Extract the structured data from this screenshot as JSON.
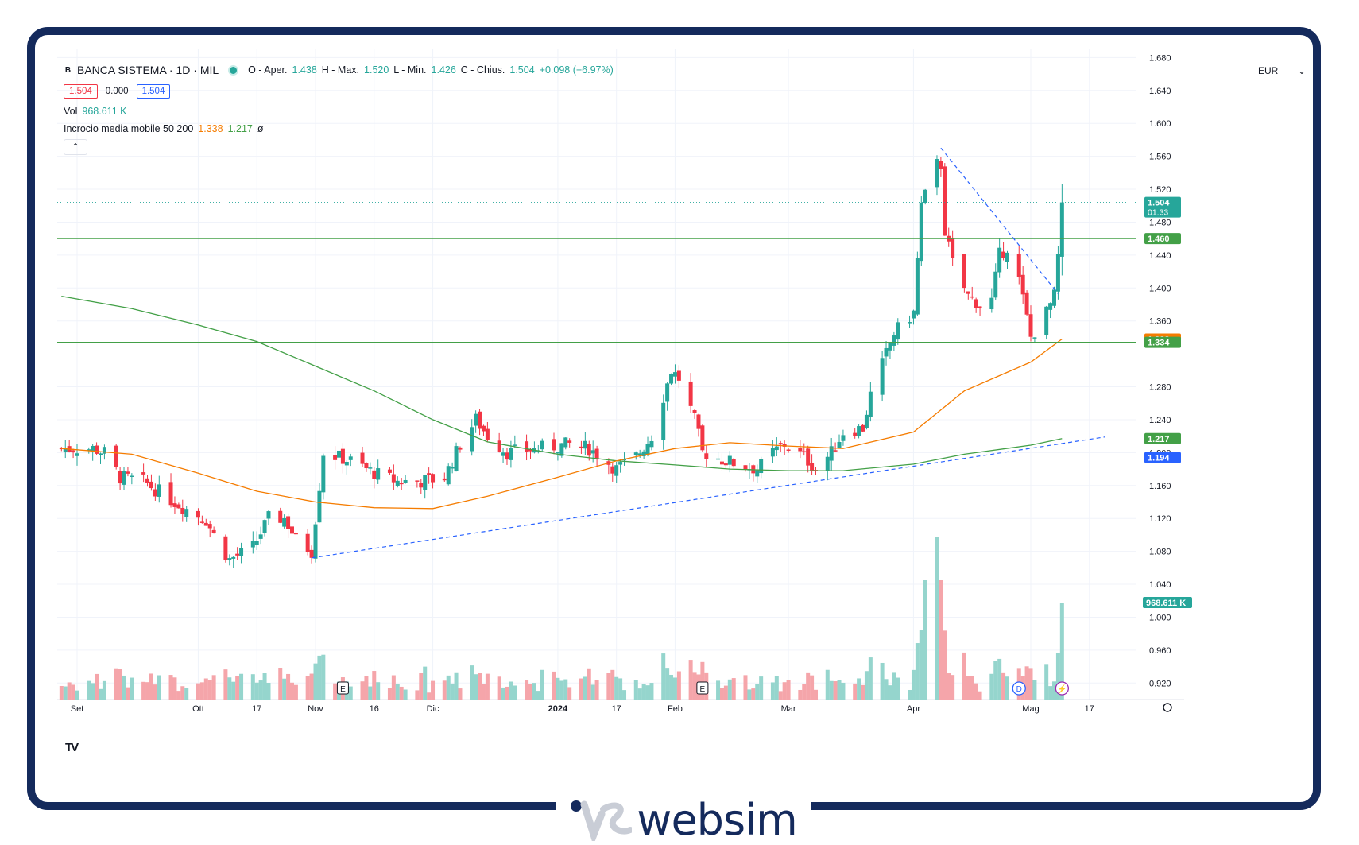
{
  "header": {
    "symbol": "BANCA SISTEMA · 1D · MIL",
    "logo_letter": "B",
    "ohlc": {
      "open_label": "O - Aper.",
      "open": "1.438",
      "high_label": "H - Max.",
      "high": "1.520",
      "low_label": "L - Min.",
      "low": "1.426",
      "close_label": "C - Chius.",
      "close": "1.504",
      "change": "+0.098 (+6.97%)"
    },
    "sell_price": "1.504",
    "spread": "0.000",
    "buy_price": "1.504",
    "volume_label": "Vol",
    "volume_value": "968.611 K",
    "ma_label": "Incrocio media mobile 50 200",
    "ma_fast": "1.338",
    "ma_slow": "1.217",
    "ma_extra": "ø",
    "collapse_icon": "chevron-up-icon"
  },
  "currency": "EUR",
  "brand": "websim",
  "colors": {
    "up": "#26a69a",
    "down": "#f23645",
    "vol_up": "#95d5cd",
    "vol_down": "#f5a5aa",
    "ma50": "#f57c00",
    "ma200": "#43a047",
    "trendline": "#2962ff",
    "frame": "#142a5c"
  },
  "chart_data": {
    "type": "candlestick",
    "y_axis_ticks": [
      "1.680",
      "1.640",
      "1.600",
      "1.560",
      "1.520",
      "1.480",
      "1.440",
      "1.400",
      "1.360",
      "1.280",
      "1.240",
      "1.200",
      "1.160",
      "1.120",
      "1.080",
      "1.040",
      "1.000",
      "0.960",
      "0.920"
    ],
    "ylim": [
      0.9,
      1.69
    ],
    "x_axis_labels": [
      {
        "label": "Set",
        "date": "2023-09-01"
      },
      {
        "label": "Ott",
        "date": "2023-10-02"
      },
      {
        "label": "17",
        "date": "2023-10-17"
      },
      {
        "label": "Nov",
        "date": "2023-11-01"
      },
      {
        "label": "16",
        "date": "2023-11-16"
      },
      {
        "label": "Dic",
        "date": "2023-12-01"
      },
      {
        "label": "2024",
        "date": "2024-01-02"
      },
      {
        "label": "17",
        "date": "2024-01-17"
      },
      {
        "label": "Feb",
        "date": "2024-02-01"
      },
      {
        "label": "Mar",
        "date": "2024-03-01"
      },
      {
        "label": "Apr",
        "date": "2024-04-02"
      },
      {
        "label": "Mag",
        "date": "2024-05-02"
      },
      {
        "label": "17",
        "date": "2024-05-17"
      }
    ],
    "first_date": "2023-08-28",
    "last_date": "2024-05-10",
    "price_markers": [
      {
        "value": "1.504",
        "sub": "01:33",
        "color": "#26a69a",
        "role": "last"
      },
      {
        "value": "1.460",
        "color": "#43a047",
        "role": "level"
      },
      {
        "value": "1.338",
        "color": "#f57c00",
        "role": "ma50"
      },
      {
        "value": "1.334",
        "color": "#43a047",
        "role": "level"
      },
      {
        "value": "1.217",
        "color": "#43a047",
        "role": "ma200"
      },
      {
        "value": "1.194",
        "color": "#2962ff",
        "role": "trendline"
      }
    ],
    "volume_marker": "968.611 K",
    "horizontal_levels": [
      1.46,
      1.334
    ],
    "last_price_line": 1.504,
    "trendlines": [
      {
        "from": [
          "2023-10-31",
          1.072
        ],
        "to": [
          "2024-05-21",
          1.219
        ]
      },
      {
        "from": [
          "2024-04-09",
          1.57
        ],
        "to": [
          "2024-05-09",
          1.393
        ]
      }
    ],
    "ma200_path": [
      [
        "2023-08-28",
        1.39
      ],
      [
        "2023-09-15",
        1.375
      ],
      [
        "2023-10-02",
        1.355
      ],
      [
        "2023-10-17",
        1.335
      ],
      [
        "2023-11-01",
        1.305
      ],
      [
        "2023-11-16",
        1.275
      ],
      [
        "2023-12-01",
        1.24
      ],
      [
        "2023-12-15",
        1.213
      ],
      [
        "2024-01-02",
        1.198
      ],
      [
        "2024-01-17",
        1.19
      ],
      [
        "2024-02-01",
        1.185
      ],
      [
        "2024-02-15",
        1.18
      ],
      [
        "2024-03-01",
        1.178
      ],
      [
        "2024-03-15",
        1.178
      ],
      [
        "2024-04-02",
        1.186
      ],
      [
        "2024-04-15",
        1.198
      ],
      [
        "2024-05-02",
        1.209
      ],
      [
        "2024-05-10",
        1.217
      ]
    ],
    "ma50_path": [
      [
        "2023-08-28",
        1.205
      ],
      [
        "2023-09-15",
        1.198
      ],
      [
        "2023-10-02",
        1.175
      ],
      [
        "2023-10-17",
        1.153
      ],
      [
        "2023-11-01",
        1.14
      ],
      [
        "2023-11-16",
        1.133
      ],
      [
        "2023-12-01",
        1.132
      ],
      [
        "2023-12-15",
        1.147
      ],
      [
        "2024-01-02",
        1.17
      ],
      [
        "2024-01-17",
        1.19
      ],
      [
        "2024-02-01",
        1.205
      ],
      [
        "2024-02-15",
        1.212
      ],
      [
        "2024-03-01",
        1.208
      ],
      [
        "2024-03-15",
        1.205
      ],
      [
        "2024-04-02",
        1.225
      ],
      [
        "2024-04-15",
        1.275
      ],
      [
        "2024-05-02",
        1.31
      ],
      [
        "2024-05-10",
        1.338
      ]
    ],
    "event_markers": [
      {
        "label": "E",
        "date": "2023-11-08"
      },
      {
        "label": "E",
        "date": "2024-02-08"
      },
      {
        "label": "D",
        "date": "2024-04-29",
        "color": "#2962ff"
      },
      {
        "label": "⚡",
        "date": "2024-05-10",
        "color": "#9c27b0"
      }
    ]
  }
}
